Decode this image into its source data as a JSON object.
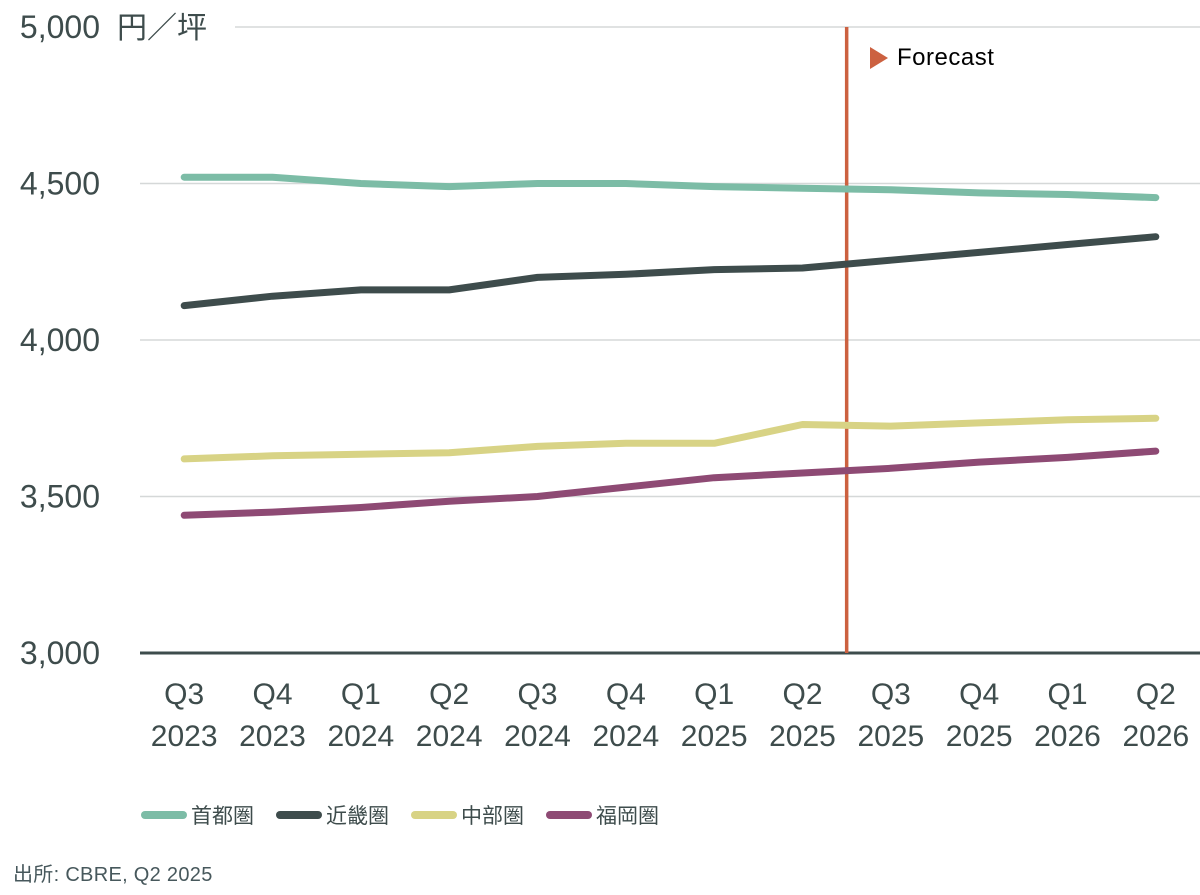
{
  "chart_data": {
    "type": "line",
    "title": "",
    "unit_label": "円／坪",
    "ylim": [
      3000,
      5000
    ],
    "yticks": [
      {
        "value": 3000,
        "label": "3,000"
      },
      {
        "value": 3500,
        "label": "3,500"
      },
      {
        "value": 4000,
        "label": "4,000"
      },
      {
        "value": 4500,
        "label": "4,500"
      },
      {
        "value": 5000,
        "label": "5,000"
      }
    ],
    "grid": true,
    "legend_position": "bottom",
    "categories": [
      "Q3 2023",
      "Q4 2023",
      "Q1 2024",
      "Q2 2024",
      "Q3 2024",
      "Q4 2024",
      "Q1 2025",
      "Q2 2025",
      "Q3 2025",
      "Q4 2025",
      "Q1 2026",
      "Q2 2026"
    ],
    "series": [
      {
        "name": "首都圏",
        "slug": "greater-tokyo",
        "color": "#7cbca6",
        "values": [
          4520,
          4520,
          4500,
          4490,
          4500,
          4500,
          4490,
          4485,
          4480,
          4470,
          4465,
          4455
        ]
      },
      {
        "name": "近畿圏",
        "slug": "kinki",
        "color": "#3e4c4c",
        "values": [
          4110,
          4140,
          4160,
          4160,
          4200,
          4210,
          4225,
          4230,
          4255,
          4280,
          4305,
          4330
        ]
      },
      {
        "name": "中部圏",
        "slug": "chubu",
        "color": "#d8d385",
        "values": [
          3620,
          3630,
          3635,
          3640,
          3660,
          3670,
          3670,
          3730,
          3725,
          3735,
          3745,
          3750
        ]
      },
      {
        "name": "福岡圏",
        "slug": "fukuoka",
        "color": "#8e4a74",
        "values": [
          3440,
          3450,
          3465,
          3485,
          3500,
          3530,
          3560,
          3575,
          3590,
          3610,
          3625,
          3645
        ]
      }
    ],
    "forecast": {
      "label": "Forecast",
      "marker": "right-triangle",
      "after_category_index": 7,
      "color": "#cc6140"
    }
  },
  "colors": {
    "axis_text": "#3e4c4c",
    "gridline": "#d5d8d8",
    "axis_line": "#3e4c4c",
    "background": "#ffffff"
  },
  "source": {
    "text": "出所: CBRE, Q2 2025"
  }
}
